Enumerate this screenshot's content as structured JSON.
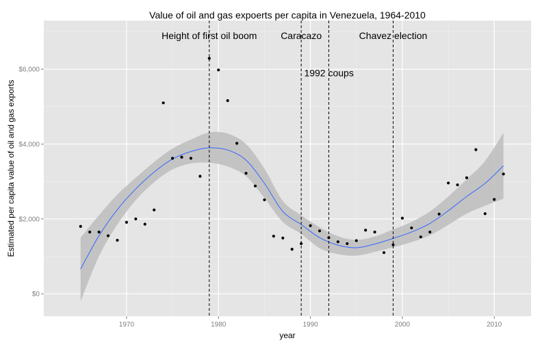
{
  "chart_data": {
    "type": "scatter",
    "title": "Value of oil and gas expoerts per capita in Venezuela, 1964-2010",
    "xlabel": "year",
    "ylabel": "Estimated per capita value of oil and gas exports",
    "xlim": [
      1961,
      2014
    ],
    "ylim": [
      -600,
      7300
    ],
    "x_ticks": [
      1970,
      1980,
      1990,
      2000,
      2010
    ],
    "x_tick_labels": [
      "1970",
      "1980",
      "1990",
      "2000",
      "2010"
    ],
    "y_ticks": [
      0,
      2000,
      4000,
      6000
    ],
    "y_tick_labels": [
      "$0",
      "$2,000",
      "$4,000",
      "$6,000"
    ],
    "grid": true,
    "background_color": "#e5e5e5",
    "point_color": "#000000",
    "smooth_color": "#3366ff",
    "ribbon_color": "#bdbdbd",
    "points": {
      "x": [
        1965,
        1966,
        1967,
        1968,
        1969,
        1970,
        1971,
        1972,
        1973,
        1974,
        1975,
        1976,
        1977,
        1978,
        1979,
        1980,
        1981,
        1982,
        1983,
        1984,
        1985,
        1986,
        1987,
        1988,
        1989,
        1990,
        1991,
        1992,
        1993,
        1994,
        1995,
        1996,
        1997,
        1998,
        1999,
        2000,
        2001,
        2002,
        2003,
        2004,
        2005,
        2006,
        2007,
        2008,
        2009,
        2010,
        2011
      ],
      "y": [
        1800,
        1650,
        1650,
        1550,
        1430,
        1910,
        2000,
        1860,
        2240,
        5100,
        3620,
        3650,
        3620,
        3140,
        6290,
        5980,
        5160,
        4020,
        3220,
        2880,
        2510,
        1540,
        1490,
        1190,
        1340,
        1820,
        1680,
        1500,
        1390,
        1340,
        1420,
        1700,
        1650,
        1100,
        1310,
        2020,
        1760,
        1520,
        1650,
        2130,
        2960,
        2910,
        3100,
        3850,
        2140,
        2520,
        3200
      ]
    },
    "smooth": {
      "x": [
        1965,
        1967,
        1969,
        1971,
        1973,
        1975,
        1977,
        1979,
        1981,
        1983,
        1985,
        1987,
        1989,
        1991,
        1993,
        1995,
        1997,
        1999,
        2001,
        2003,
        2005,
        2007,
        2009,
        2011
      ],
      "y": [
        660,
        1550,
        2250,
        2800,
        3250,
        3600,
        3800,
        3900,
        3840,
        3570,
        2950,
        2200,
        1850,
        1500,
        1300,
        1230,
        1330,
        1480,
        1650,
        1880,
        2220,
        2600,
        2950,
        3420
      ]
    },
    "ribbon": {
      "upper": [
        1500,
        2100,
        2650,
        3100,
        3520,
        3880,
        4120,
        4310,
        4280,
        4000,
        3340,
        2480,
        2100,
        1780,
        1540,
        1440,
        1530,
        1720,
        1920,
        2200,
        2600,
        3060,
        3550,
        4300
      ],
      "lower": [
        -200,
        1000,
        1850,
        2500,
        2980,
        3320,
        3480,
        3500,
        3400,
        3140,
        2560,
        1920,
        1600,
        1220,
        1060,
        1020,
        1120,
        1240,
        1380,
        1560,
        1840,
        2140,
        2350,
        2540
      ]
    },
    "events": [
      {
        "year": 1979,
        "label": "Height of first oil boom",
        "label_y": 6900,
        "label_anchor": "middle"
      },
      {
        "year": 1989,
        "label": "Caracazo",
        "label_y": 6900,
        "label_anchor": "middle"
      },
      {
        "year": 1992,
        "label": "1992 coups",
        "label_y": 5900,
        "label_anchor": "start"
      },
      {
        "year": 1999,
        "label": "Chavez election",
        "label_y": 6900,
        "label_anchor": "middle"
      }
    ]
  }
}
